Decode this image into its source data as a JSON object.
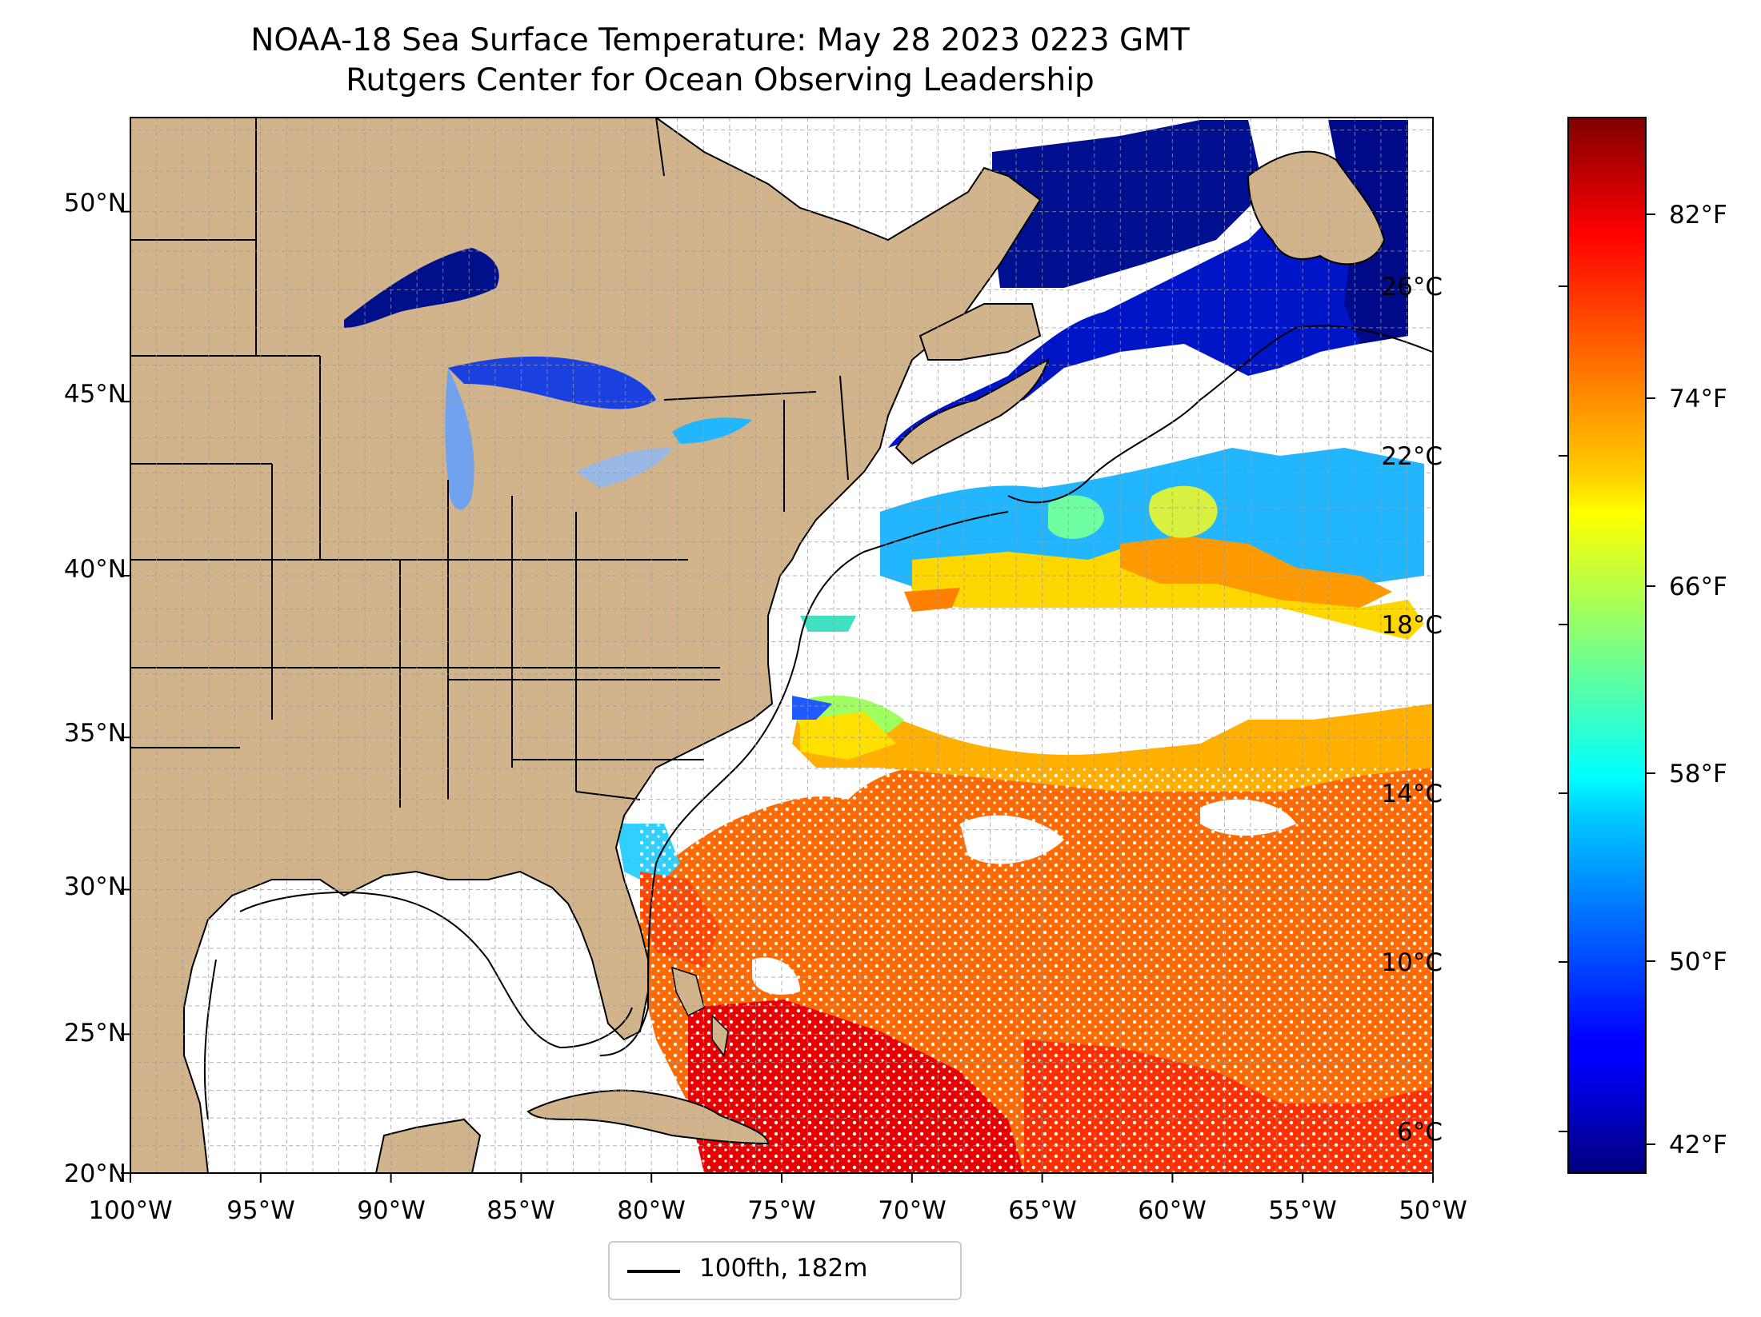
{
  "title": {
    "line1": "NOAA-18 Sea Surface Temperature: May 28 2023 0223 GMT",
    "line2": "Rutgers Center for Ocean Observing Leadership"
  },
  "map": {
    "lat_labels": [
      "50°N",
      "45°N",
      "40°N",
      "35°N",
      "30°N",
      "25°N",
      "20°N"
    ],
    "lon_labels": [
      "100°W",
      "95°W",
      "90°W",
      "85°W",
      "80°W",
      "75°W",
      "70°W",
      "65°W",
      "60°W",
      "55°W",
      "50°W"
    ],
    "lat_range": [
      20,
      52.3
    ],
    "lon_range": [
      -100,
      -50
    ],
    "grid": true,
    "colors": {
      "land": "#d2b48c",
      "lakes": "#9ab8e6",
      "no_data": "#ffffff",
      "coastline": "#000000"
    }
  },
  "colorbar": {
    "colormap": "jet",
    "celsius_labels": [
      "26°C",
      "22°C",
      "18°C",
      "14°C",
      "10°C",
      "6°C"
    ],
    "fahrenheit_labels": [
      "82°F",
      "74°F",
      "66°F",
      "58°F",
      "50°F",
      "42°F"
    ]
  },
  "legend": {
    "label": "100fth, 182m"
  }
}
